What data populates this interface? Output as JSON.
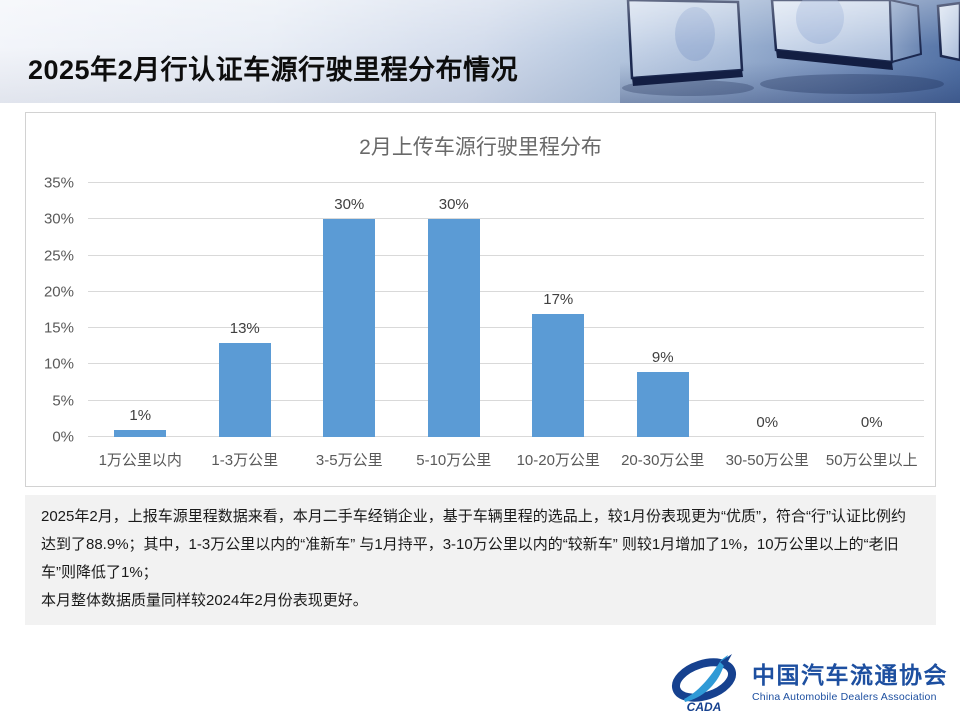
{
  "header": {
    "title": "2025年2月行认证车源行驶里程分布情况"
  },
  "chart_data": {
    "type": "bar",
    "title": "2月上传车源行驶里程分布",
    "categories": [
      "1万公里以内",
      "1-3万公里",
      "3-5万公里",
      "5-10万公里",
      "10-20万公里",
      "20-30万公里",
      "30-50万公里",
      "50万公里以上"
    ],
    "values": [
      1,
      13,
      30,
      30,
      17,
      9,
      0,
      0
    ],
    "value_labels": [
      "1%",
      "13%",
      "30%",
      "30%",
      "17%",
      "9%",
      "0%",
      "0%"
    ],
    "xlabel": "",
    "ylabel": "",
    "ylim": [
      0,
      35
    ],
    "y_ticks": [
      {
        "value": 0,
        "label": "0%"
      },
      {
        "value": 5,
        "label": "5%"
      },
      {
        "value": 10,
        "label": "10%"
      },
      {
        "value": 15,
        "label": "15%"
      },
      {
        "value": 20,
        "label": "20%"
      },
      {
        "value": 25,
        "label": "25%"
      },
      {
        "value": 30,
        "label": "30%"
      },
      {
        "value": 35,
        "label": "35%"
      }
    ],
    "grid": true,
    "legend_position": "none",
    "bar_color": "#5B9BD5"
  },
  "summary": {
    "paragraphs": [
      "2025年2月，上报车源里程数据来看，本月二手车经销企业，基于车辆里程的选品上，较1月份表现更为“优质”，符合“行”认证比例约达到了88.9%；其中，1-3万公里以内的“准新车” 与1月持平，3-10万公里以内的“较新车” 则较1月增加了1%，10万公里以上的“老旧车”则降低了1%；",
      "本月整体数据质量同样较2024年2月份表现更好。"
    ]
  },
  "footer": {
    "logo_text": "CADA",
    "org_name_cn": "中国汽车流通协会",
    "org_name_en": "China Automobile Dealers Association"
  },
  "colors": {
    "bar": "#5B9BD5",
    "logo_blue": "#1D4FA0",
    "logo_light_blue": "#2F9AD6",
    "summary_bg": "#F2F2F2",
    "gridline": "#D9D9D9"
  }
}
